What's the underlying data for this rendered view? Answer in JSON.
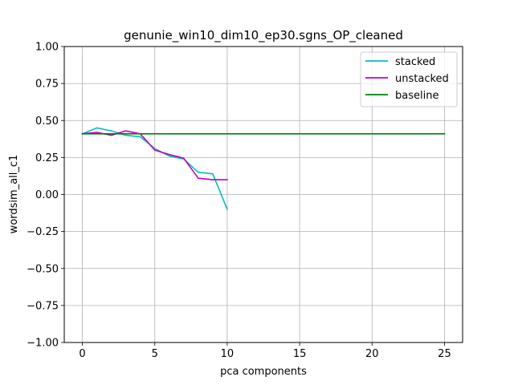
{
  "chart_data": {
    "type": "line",
    "title": "genunie_win10_dim10_ep30.sgns_OP_cleaned",
    "xlabel": "pca components",
    "ylabel": "wordsim_all_c1",
    "xlim": [
      -1.25,
      26.25
    ],
    "ylim": [
      -1.0,
      1.0
    ],
    "xticks": [
      0,
      5,
      10,
      15,
      20,
      25
    ],
    "yticks": [
      -1.0,
      -0.75,
      -0.5,
      -0.25,
      0.0,
      0.25,
      0.5,
      0.75,
      1.0
    ],
    "xtick_labels": [
      "0",
      "5",
      "10",
      "15",
      "20",
      "25"
    ],
    "ytick_labels": [
      "−1.00",
      "−0.75",
      "−0.50",
      "−0.25",
      "0.00",
      "0.25",
      "0.50",
      "0.75",
      "1.00"
    ],
    "grid": true,
    "legend_position": "top-right",
    "series": [
      {
        "name": "stacked",
        "color": "#00bfbf",
        "x": [
          0,
          1,
          2,
          3,
          4,
          5,
          6,
          7,
          8,
          9,
          10
        ],
        "y": [
          0.41,
          0.45,
          0.43,
          0.4,
          0.39,
          0.31,
          0.26,
          0.24,
          0.15,
          0.14,
          -0.1
        ]
      },
      {
        "name": "unstacked",
        "color": "#bf00bf",
        "x": [
          0,
          1,
          2,
          3,
          4,
          5,
          6,
          7,
          8,
          9,
          10
        ],
        "y": [
          0.41,
          0.42,
          0.4,
          0.43,
          0.41,
          0.3,
          0.27,
          0.245,
          0.11,
          0.1,
          0.1
        ]
      },
      {
        "name": "baseline",
        "color": "#008000",
        "x": [
          0,
          25
        ],
        "y": [
          0.41,
          0.41
        ]
      }
    ]
  }
}
